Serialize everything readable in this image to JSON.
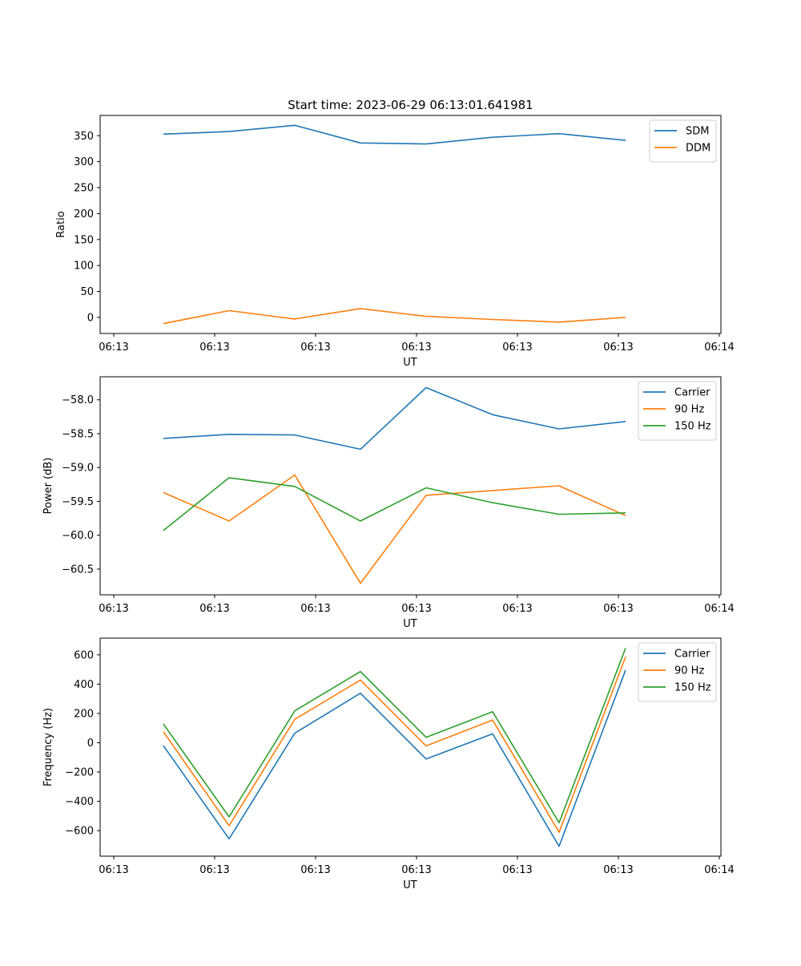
{
  "figure": {
    "title": "Start time: 2023-06-29 06:13:01.641981"
  },
  "chart_data": [
    {
      "type": "line",
      "title": "Start time: 2023-06-29 06:13:01.641981",
      "xlabel": "UT",
      "ylabel": "Ratio",
      "x_tick_labels": [
        "06:13",
        "06:13",
        "06:13",
        "06:13",
        "06:13",
        "06:13",
        "06:14"
      ],
      "y_ticks": [
        0,
        50,
        100,
        150,
        200,
        250,
        300,
        350
      ],
      "ylim": [
        -31,
        389
      ],
      "legend": "top-right",
      "grid": false,
      "series": [
        {
          "name": "SDM",
          "color": "#1f77b4",
          "values": [
            353,
            358,
            370,
            336,
            334,
            347,
            354,
            341
          ]
        },
        {
          "name": "DDM",
          "color": "#ff7f0e",
          "values": [
            -12,
            13,
            -3,
            17,
            2,
            -4,
            -9,
            0
          ]
        }
      ]
    },
    {
      "type": "line",
      "title": "",
      "xlabel": "UT",
      "ylabel": "Power (dB)",
      "x_tick_labels": [
        "06:13",
        "06:13",
        "06:13",
        "06:13",
        "06:13",
        "06:13",
        "06:14"
      ],
      "y_ticks": [
        -60.5,
        -60.0,
        -59.5,
        -59.0,
        -58.5,
        -58.0
      ],
      "y_tick_labels": [
        "−60.5",
        "−60.0",
        "−59.5",
        "−59.0",
        "−58.5",
        "−58.0"
      ],
      "ylim": [
        -60.88,
        -57.66
      ],
      "legend": "top-right",
      "grid": false,
      "series": [
        {
          "name": "Carrier",
          "color": "#1f77b4",
          "values": [
            -58.57,
            -58.51,
            -58.52,
            -58.73,
            -57.82,
            -58.22,
            -58.43,
            -58.32
          ]
        },
        {
          "name": "90 Hz",
          "color": "#ff7f0e",
          "values": [
            -59.37,
            -59.79,
            -59.11,
            -60.71,
            -59.41,
            -59.34,
            -59.27,
            -59.71
          ]
        },
        {
          "name": "150 Hz",
          "color": "#2ca02c",
          "values": [
            -59.93,
            -59.15,
            -59.28,
            -59.79,
            -59.3,
            -59.52,
            -59.69,
            -59.67
          ]
        }
      ]
    },
    {
      "type": "line",
      "title": "",
      "xlabel": "UT",
      "ylabel": "Frequency (Hz)",
      "x_tick_labels": [
        "06:13",
        "06:13",
        "06:13",
        "06:13",
        "06:13",
        "06:13",
        "06:14"
      ],
      "y_ticks": [
        -600,
        -400,
        -200,
        0,
        200,
        400,
        600
      ],
      "y_tick_labels": [
        "−600",
        "−400",
        "−200",
        "0",
        "200",
        "400",
        "600"
      ],
      "ylim": [
        -774,
        714
      ],
      "legend": "top-right",
      "grid": false,
      "series": [
        {
          "name": "Carrier",
          "color": "#1f77b4",
          "values": [
            -20,
            -656,
            65,
            338,
            -111,
            61,
            -706,
            496
          ]
        },
        {
          "name": "90 Hz",
          "color": "#ff7f0e",
          "values": [
            75,
            -566,
            160,
            428,
            -21,
            155,
            -611,
            586
          ]
        },
        {
          "name": "150 Hz",
          "color": "#2ca02c",
          "values": [
            128,
            -506,
            218,
            486,
            37,
            212,
            -546,
            646
          ]
        }
      ]
    }
  ]
}
